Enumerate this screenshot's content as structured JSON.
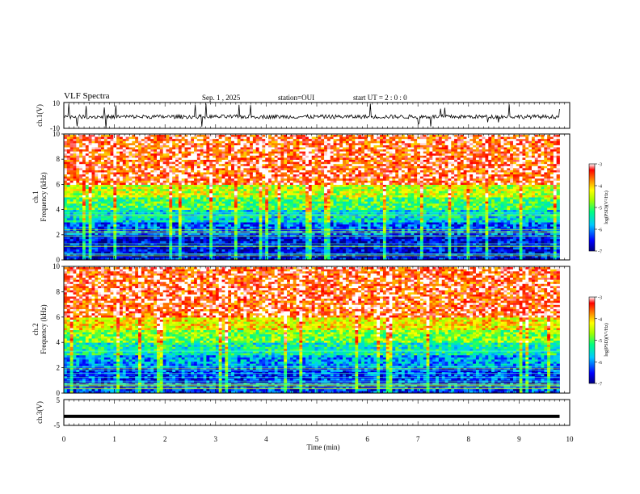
{
  "header": {
    "title": "VLF Spectra",
    "date": "Sep. 1 , 2025",
    "station": "station=OUI",
    "start_ut": "start UT =  2 : 0 : 0"
  },
  "chart_data": [
    {
      "type": "line",
      "id": "ch1-waveform",
      "ylabel": "ch.1(V)",
      "ylim": [
        -10,
        10
      ],
      "ytick_labels": [
        "10",
        "-10"
      ],
      "xlim": [
        0,
        10
      ],
      "baseline": -1,
      "description_values": {
        "typical_min": -3,
        "typical_max": 1,
        "spike_min": -10,
        "spike_max": 10
      }
    },
    {
      "type": "heatmap",
      "id": "ch1-spectrogram",
      "ylabel_line1": "ch.1",
      "ylabel_line2": "Frequency (kHz)",
      "ylim": [
        0,
        10
      ],
      "yticks": [
        0,
        2,
        4,
        6,
        8,
        10
      ],
      "xlim": [
        0,
        9.8
      ],
      "colorbar": {
        "label": "log(PSD)(V²/Hz)",
        "ticks": [
          -3,
          -4,
          -5,
          -6,
          -7
        ],
        "range": [
          -7,
          -3
        ]
      },
      "bands": [
        {
          "from": 0,
          "to": 2,
          "level": -6.6
        },
        {
          "from": 2,
          "to": 3,
          "level": -6.2
        },
        {
          "from": 3,
          "to": 4,
          "level": -5.6
        },
        {
          "from": 4,
          "to": 5,
          "level": -5.0
        },
        {
          "from": 5,
          "to": 6,
          "level": -4.5
        },
        {
          "from": 6,
          "to": 10,
          "level": -3.4
        }
      ]
    },
    {
      "type": "heatmap",
      "id": "ch2-spectrogram",
      "ylabel_line1": "ch.2",
      "ylabel_line2": "Frequency (kHz)",
      "ylim": [
        0,
        10
      ],
      "yticks": [
        0,
        2,
        4,
        6,
        8,
        10
      ],
      "xlim": [
        0,
        9.8
      ],
      "colorbar": {
        "label": "log(PSD)(V²/Hz)",
        "ticks": [
          -3,
          -4,
          -5,
          -6,
          -7
        ],
        "range": [
          -7,
          -3
        ]
      },
      "bands": [
        {
          "from": 0,
          "to": 2,
          "level": -6.3
        },
        {
          "from": 2,
          "to": 3,
          "level": -5.9
        },
        {
          "from": 3,
          "to": 4,
          "level": -5.4
        },
        {
          "from": 4,
          "to": 5,
          "level": -4.8
        },
        {
          "from": 5,
          "to": 6,
          "level": -4.2
        },
        {
          "from": 6,
          "to": 10,
          "level": -3.4
        }
      ]
    },
    {
      "type": "line",
      "id": "ch3-waveform",
      "ylabel": "ch.3(V)",
      "ylim": [
        -5,
        5
      ],
      "ytick_labels": [
        "5",
        "-5"
      ],
      "xlim": [
        0,
        10
      ],
      "baseline": -1.5
    }
  ],
  "xaxis": {
    "label": "Time (min)",
    "ticks": [
      0,
      1,
      2,
      3,
      4,
      5,
      6,
      7,
      8,
      9,
      10
    ],
    "tick_labels": [
      "0",
      "1",
      "2",
      "3",
      "4",
      "5",
      "6",
      "7",
      "8",
      "9",
      "10"
    ]
  }
}
